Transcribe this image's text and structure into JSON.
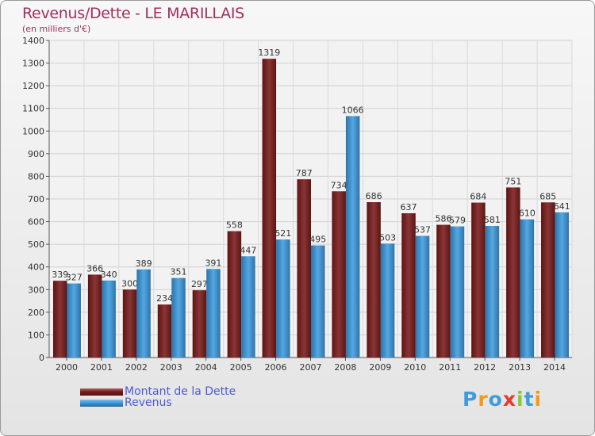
{
  "header": {
    "title": "Revenus/Dette - LE MARILLAIS",
    "subtitle": "(en milliers d'€)"
  },
  "chart_data": {
    "type": "bar",
    "categories": [
      "2000",
      "2001",
      "2002",
      "2003",
      "2004",
      "2005",
      "2006",
      "2007",
      "2008",
      "2009",
      "2010",
      "2011",
      "2012",
      "2013",
      "2014"
    ],
    "series": [
      {
        "name": "Montant de la Dette",
        "color": "#7a1a1a",
        "values": [
          339,
          366,
          300,
          234,
          297,
          558,
          1319,
          787,
          734,
          686,
          637,
          586,
          684,
          751,
          685
        ]
      },
      {
        "name": "Revenus",
        "color": "#3d9be0",
        "values": [
          327,
          340,
          389,
          351,
          391,
          447,
          521,
          495,
          1066,
          503,
          537,
          579,
          581,
          610,
          641
        ]
      }
    ],
    "ylim": [
      0,
      1400
    ],
    "yticks": [
      0,
      100,
      200,
      300,
      400,
      500,
      600,
      700,
      800,
      900,
      1000,
      1100,
      1200,
      1300,
      1400
    ],
    "grid": true,
    "legend_position": "bottom-left"
  },
  "legend": {
    "items": [
      {
        "label": "Montant de la Dette",
        "color": "#7a1a1a"
      },
      {
        "label": "Revenus",
        "color": "#3d9be0"
      }
    ]
  },
  "logo": {
    "letters": [
      "P",
      "r",
      "o",
      "x",
      "i",
      "t",
      "i"
    ],
    "colors": [
      "#3d9be0",
      "#f39a1e",
      "#3d9be0",
      "#e8392f",
      "#8cc63f",
      "#3d9be0",
      "#f39a1e"
    ]
  }
}
